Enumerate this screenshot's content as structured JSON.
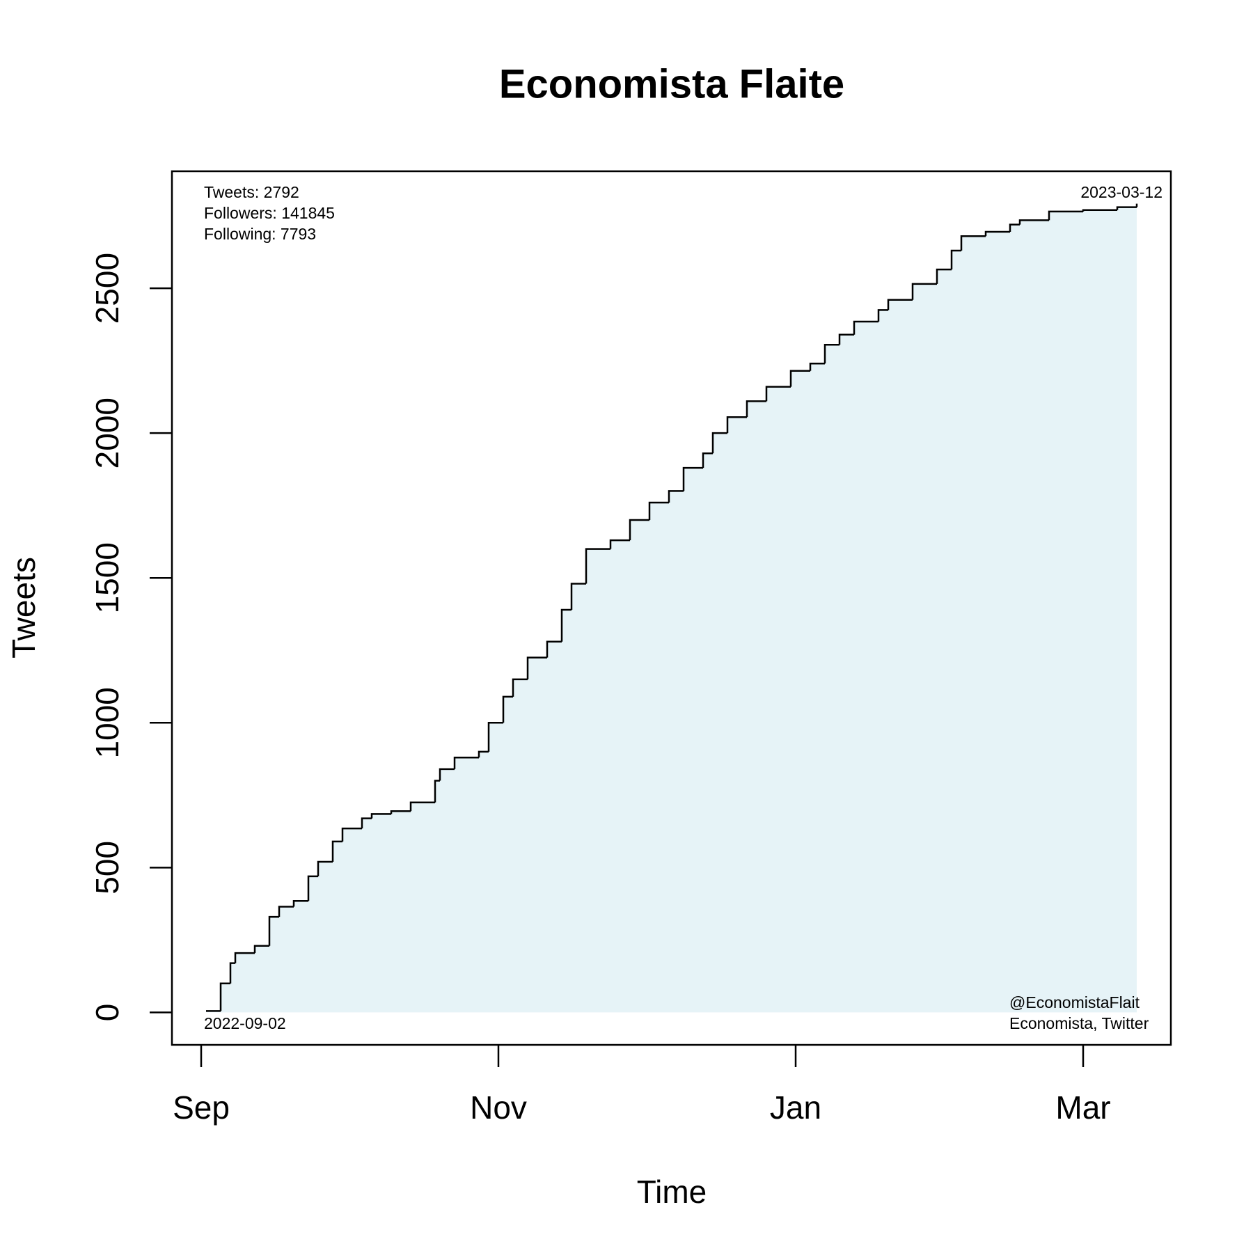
{
  "chart_data": {
    "type": "step",
    "title": "Economista Flaite",
    "x_label": "Time",
    "y_label": "Tweets",
    "x": [
      "2022-09-02",
      "2022-09-05",
      "2022-09-07",
      "2022-09-08",
      "2022-09-12",
      "2022-09-15",
      "2022-09-17",
      "2022-09-20",
      "2022-09-23",
      "2022-09-25",
      "2022-09-28",
      "2022-09-30",
      "2022-10-04",
      "2022-10-06",
      "2022-10-10",
      "2022-10-14",
      "2022-10-19",
      "2022-10-20",
      "2022-10-23",
      "2022-10-28",
      "2022-10-30",
      "2022-11-02",
      "2022-11-04",
      "2022-11-07",
      "2022-11-11",
      "2022-11-14",
      "2022-11-16",
      "2022-11-19",
      "2022-11-24",
      "2022-11-28",
      "2022-12-02",
      "2022-12-06",
      "2022-12-09",
      "2022-12-13",
      "2022-12-15",
      "2022-12-18",
      "2022-12-22",
      "2022-12-26",
      "2022-12-31",
      "2023-01-04",
      "2023-01-07",
      "2023-01-10",
      "2023-01-13",
      "2023-01-18",
      "2023-01-20",
      "2023-01-25",
      "2023-01-30",
      "2023-02-02",
      "2023-02-04",
      "2023-02-09",
      "2023-02-14",
      "2023-02-16",
      "2023-02-22",
      "2023-03-01",
      "2023-03-08",
      "2023-03-12"
    ],
    "series": [
      {
        "name": "Tweets",
        "color": "#000000",
        "fill": "#e6f3f7",
        "values": [
          5,
          100,
          170,
          205,
          230,
          330,
          365,
          385,
          470,
          520,
          590,
          635,
          670,
          685,
          695,
          725,
          800,
          840,
          880,
          900,
          1000,
          1090,
          1150,
          1225,
          1280,
          1390,
          1480,
          1600,
          1630,
          1700,
          1760,
          1800,
          1880,
          1930,
          2000,
          2055,
          2110,
          2160,
          2215,
          2240,
          2305,
          2340,
          2385,
          2425,
          2460,
          2515,
          2565,
          2630,
          2680,
          2695,
          2720,
          2735,
          2765,
          2770,
          2780,
          2792
        ]
      }
    ],
    "xlim": [
      "2022-08-26",
      "2023-03-19"
    ],
    "xticks": [
      {
        "value": "2022-09-01",
        "label": "Sep"
      },
      {
        "value": "2022-11-01",
        "label": "Nov"
      },
      {
        "value": "2023-01-01",
        "label": "Jan"
      },
      {
        "value": "2023-03-01",
        "label": "Mar"
      }
    ],
    "ylim": [
      -112,
      2904
    ],
    "yticks": [
      0,
      500,
      1000,
      1500,
      2000,
      2500
    ],
    "annotations_top_left": [
      "Tweets: 2792",
      "Followers: 141845",
      "Following: 7793"
    ],
    "annotation_top_right": "2023-03-12",
    "annotation_bottom_left": "2022-09-02",
    "annotations_bottom_right": [
      "@EconomistaFlait",
      "Economista, Twitter"
    ]
  }
}
